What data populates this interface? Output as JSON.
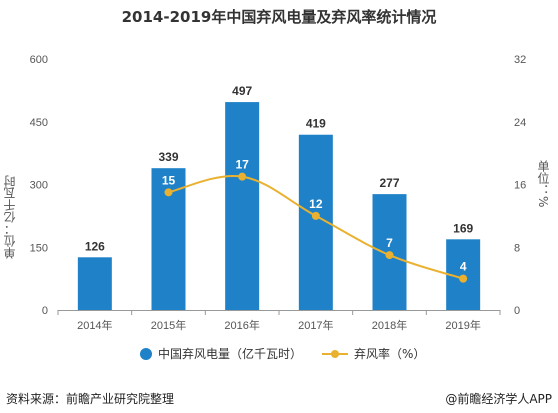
{
  "title": "2014-2019年中国弃风电量及弃风率统计情况",
  "footer": {
    "source": "资料来源：前瞻产业研究院整理",
    "brand": "@前瞻经济学人APP"
  },
  "colors": {
    "bar": "#1f82c8",
    "line": "#e9b12f",
    "axis": "#999999",
    "grid": "#e6e6e6",
    "text": "#555555"
  },
  "chart_data": {
    "type": "bar",
    "title": "2014-2019年中国弃风电量及弃风率统计情况",
    "categories": [
      "2014年",
      "2015年",
      "2016年",
      "2017年",
      "2018年",
      "2019年"
    ],
    "series": [
      {
        "name": "中国弃风电量（亿千瓦时）",
        "type": "bar",
        "axis": "left",
        "values": [
          126,
          339,
          497,
          419,
          277,
          169
        ]
      },
      {
        "name": "弃风率（%）",
        "type": "line",
        "axis": "right",
        "smooth": true,
        "values": [
          null,
          15,
          17,
          12,
          7,
          4
        ]
      }
    ],
    "ylabel_left": "单位：亿千瓦时",
    "ylabel_right": "单位：%",
    "ylim_left": [
      0,
      600
    ],
    "yticks_left": [
      "0",
      "150",
      "300",
      "450",
      "600"
    ],
    "ylim_right": [
      0,
      32
    ],
    "yticks_right": [
      "0",
      "8",
      "16",
      "24",
      "32"
    ],
    "legend": {
      "position": "bottom"
    },
    "grid": false
  }
}
